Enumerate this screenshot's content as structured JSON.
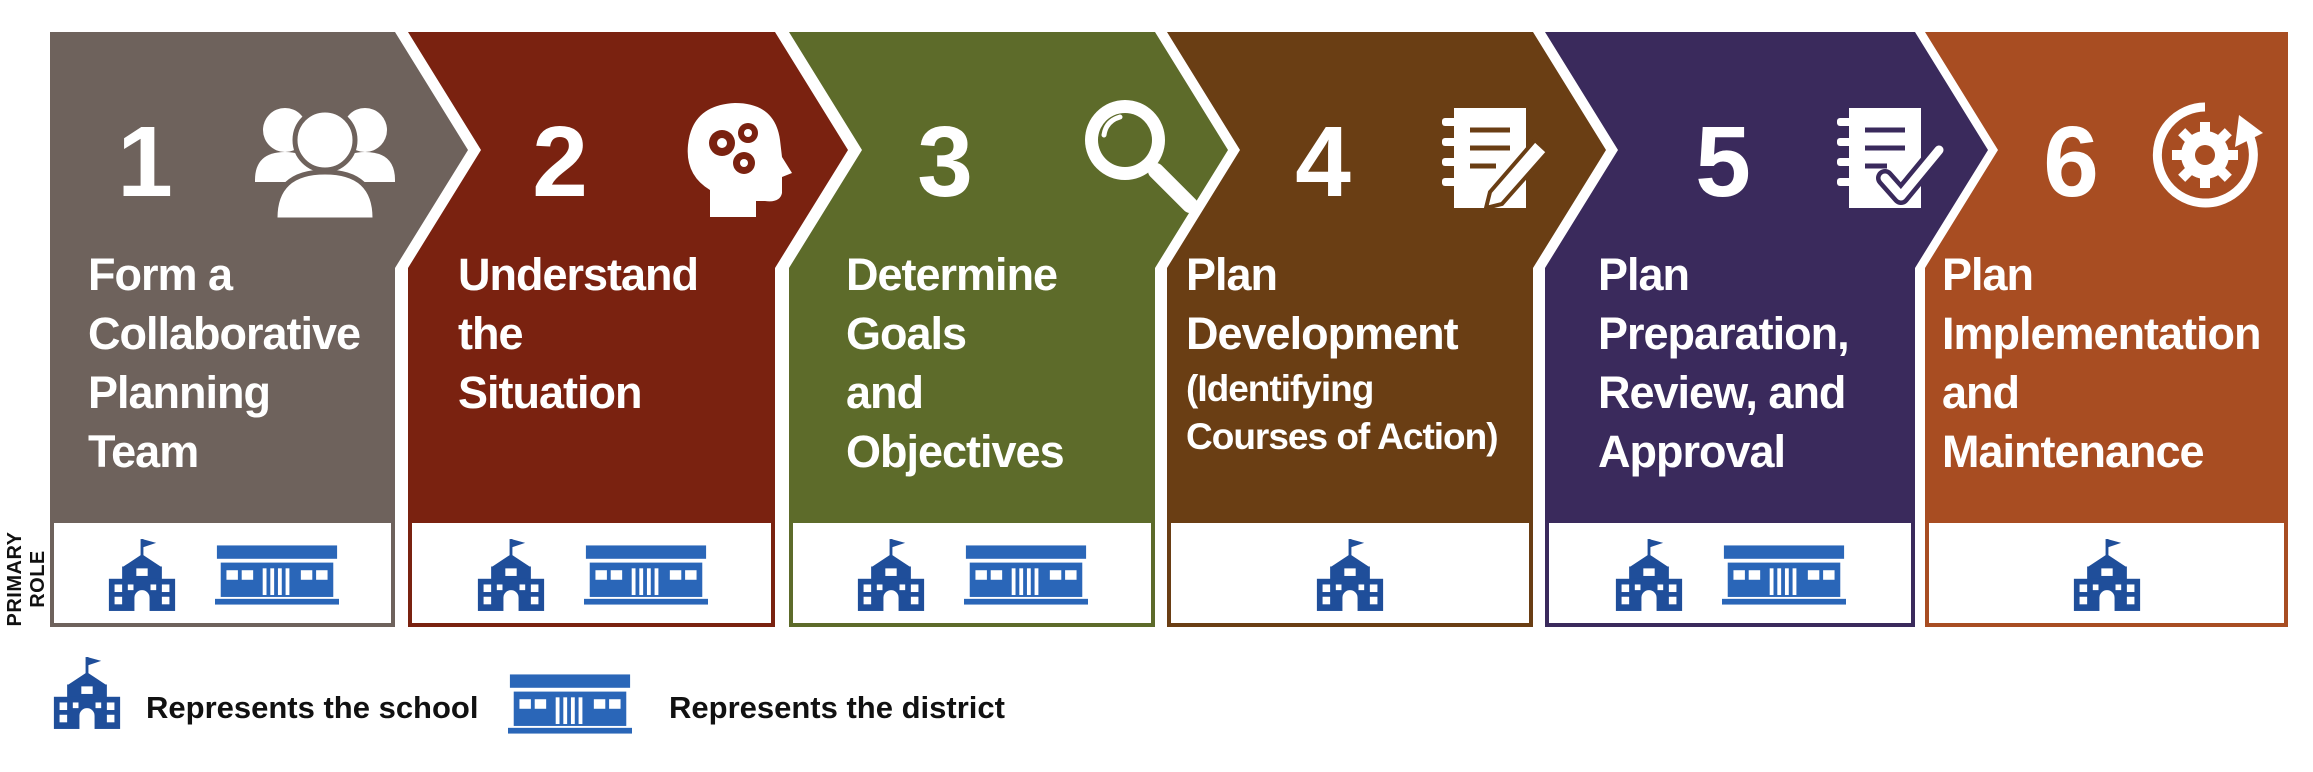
{
  "side_label": "PRIMARY ROLE",
  "steps": [
    {
      "number": "1",
      "title_lines": [
        "Form a",
        "Collaborative",
        "Planning",
        "Team"
      ],
      "subtitle": "",
      "icon": "people-icon",
      "color": "#6e625c",
      "roles": [
        "school",
        "district"
      ]
    },
    {
      "number": "2",
      "title_lines": [
        "Understand",
        "the",
        "Situation"
      ],
      "subtitle": "",
      "icon": "head-gears-icon",
      "color": "#7a2210",
      "roles": [
        "school",
        "district"
      ]
    },
    {
      "number": "3",
      "title_lines": [
        "Determine",
        "Goals",
        "and",
        "Objectives"
      ],
      "subtitle": "",
      "icon": "magnifier-icon",
      "color": "#5d6b2a",
      "roles": [
        "school",
        "district"
      ]
    },
    {
      "number": "4",
      "title_lines": [
        "Plan",
        "Development"
      ],
      "subtitle": "(Identifying Courses of Action)",
      "icon": "notebook-pencil-icon",
      "color": "#6a3e14",
      "roles": [
        "school"
      ]
    },
    {
      "number": "5",
      "title_lines": [
        "Plan",
        "Preparation,",
        "Review, and",
        "Approval"
      ],
      "subtitle": "",
      "icon": "notebook-check-icon",
      "color": "#3a2a5c",
      "roles": [
        "school",
        "district"
      ]
    },
    {
      "number": "6",
      "title_lines": [
        "Plan",
        "Implementation",
        "and",
        "Maintenance"
      ],
      "subtitle": "",
      "icon": "gear-cycle-icon",
      "color": "#a84d22",
      "roles": [
        "school"
      ]
    }
  ],
  "legend": {
    "school_label": "Represents the school",
    "district_label": "Represents the district",
    "school_color": "#1f4e9a",
    "district_color": "#2a66b8"
  }
}
